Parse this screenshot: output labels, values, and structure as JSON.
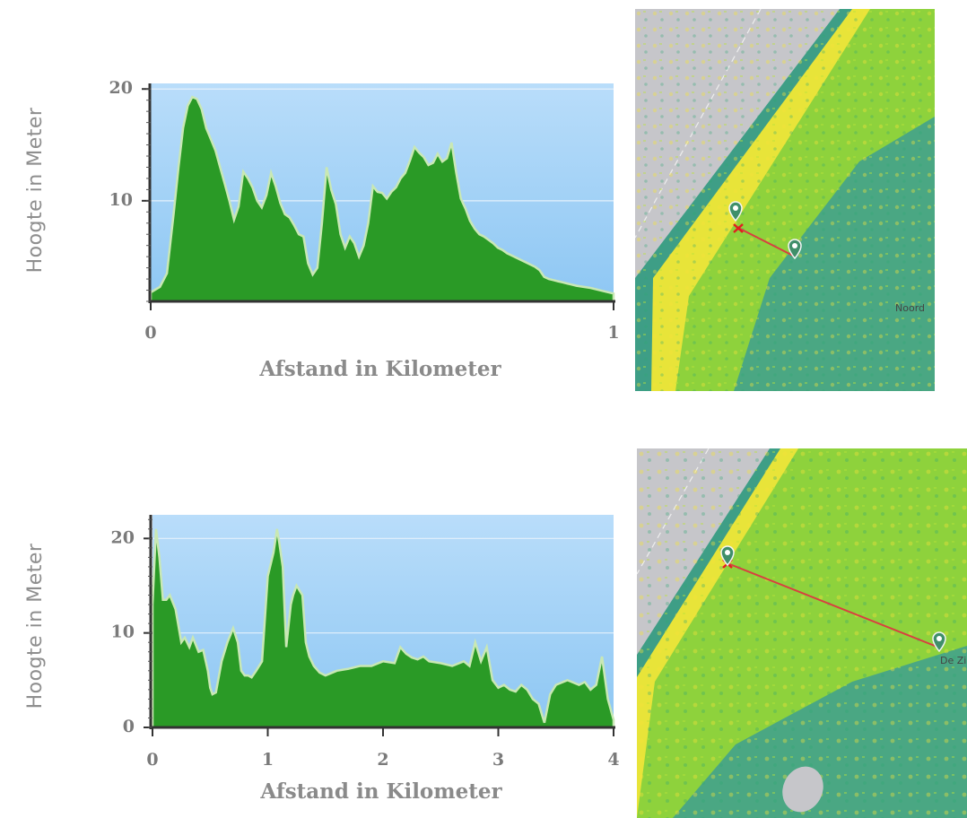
{
  "charts": [
    {
      "type": "area",
      "xlabel": "Afstand in Kilometer",
      "ylabel": "Hoogte in Meter",
      "xlim": [
        0,
        1
      ],
      "ylim": [
        1,
        20.5
      ],
      "x_ticks": [
        "0",
        "1"
      ],
      "y_ticks": [
        "10",
        "20"
      ],
      "grid": true,
      "x": [
        0,
        0.02,
        0.035,
        0.05,
        0.06,
        0.07,
        0.08,
        0.09,
        0.1,
        0.11,
        0.12,
        0.13,
        0.14,
        0.15,
        0.16,
        0.17,
        0.18,
        0.19,
        0.2,
        0.21,
        0.22,
        0.23,
        0.24,
        0.25,
        0.26,
        0.27,
        0.28,
        0.29,
        0.3,
        0.31,
        0.32,
        0.33,
        0.34,
        0.35,
        0.36,
        0.37,
        0.38,
        0.39,
        0.4,
        0.41,
        0.42,
        0.43,
        0.44,
        0.45,
        0.46,
        0.47,
        0.48,
        0.49,
        0.5,
        0.51,
        0.52,
        0.53,
        0.54,
        0.55,
        0.56,
        0.57,
        0.58,
        0.59,
        0.6,
        0.61,
        0.62,
        0.63,
        0.64,
        0.65,
        0.66,
        0.67,
        0.68,
        0.69,
        0.7,
        0.71,
        0.72,
        0.73,
        0.74,
        0.75,
        0.76,
        0.77,
        0.78,
        0.79,
        0.8,
        0.81,
        0.82,
        0.83,
        0.84,
        0.85,
        0.86,
        0.87,
        0.88,
        0.89,
        0.9,
        0.92,
        0.95,
        0.98,
        1.0
      ],
      "values": [
        1.8,
        2.3,
        3.5,
        9,
        13,
        16.5,
        18.5,
        19.3,
        19.1,
        18.2,
        16.5,
        15.5,
        14.5,
        13,
        11.5,
        10,
        8.3,
        9.5,
        12.6,
        12,
        11.2,
        10,
        9.4,
        10.5,
        12.5,
        11.3,
        9.8,
        8.8,
        8.5,
        7.8,
        7,
        6.8,
        4.4,
        3.4,
        4,
        8,
        13,
        11,
        9.7,
        7,
        5.8,
        6.8,
        6.2,
        5,
        6,
        8,
        11.3,
        10.8,
        10.7,
        10.2,
        10.8,
        11.2,
        12,
        12.5,
        13.6,
        14.8,
        14.3,
        13.9,
        13.2,
        13.4,
        14.2,
        13.5,
        13.8,
        15.2,
        12.5,
        10.2,
        9.3,
        8.2,
        7.5,
        7,
        6.8,
        6.5,
        6.2,
        5.8,
        5.6,
        5.3,
        5.1,
        4.9,
        4.7,
        4.5,
        4.3,
        4.1,
        3.8,
        3.2,
        3,
        2.9,
        2.8,
        2.7,
        2.6,
        2.4,
        2.2,
        1.9,
        1.7
      ]
    },
    {
      "type": "area",
      "xlabel": "Afstand in Kilometer",
      "ylabel": "Hoogte in Meter",
      "xlim": [
        0,
        4
      ],
      "ylim": [
        0,
        22.5
      ],
      "x_ticks": [
        "0",
        "1",
        "2",
        "3",
        "4"
      ],
      "y_ticks": [
        "0",
        "10",
        "20"
      ],
      "grid": true,
      "x": [
        0,
        0.03,
        0.06,
        0.09,
        0.12,
        0.15,
        0.2,
        0.25,
        0.28,
        0.32,
        0.35,
        0.4,
        0.44,
        0.48,
        0.5,
        0.52,
        0.55,
        0.6,
        0.65,
        0.7,
        0.74,
        0.77,
        0.8,
        0.83,
        0.86,
        0.9,
        0.95,
        1.0,
        1.05,
        1.08,
        1.1,
        1.13,
        1.16,
        1.2,
        1.22,
        1.25,
        1.3,
        1.33,
        1.36,
        1.4,
        1.45,
        1.5,
        1.6,
        1.7,
        1.8,
        1.9,
        2.0,
        2.1,
        2.15,
        2.2,
        2.25,
        2.3,
        2.35,
        2.4,
        2.5,
        2.6,
        2.7,
        2.75,
        2.8,
        2.85,
        2.9,
        2.95,
        3.0,
        3.05,
        3.1,
        3.15,
        3.2,
        3.25,
        3.3,
        3.35,
        3.4,
        3.45,
        3.5,
        3.6,
        3.7,
        3.75,
        3.8,
        3.85,
        3.9,
        3.95,
        4.0
      ],
      "values": [
        13,
        21,
        18,
        13.5,
        13.5,
        14,
        12.5,
        9,
        9.5,
        8.5,
        9.5,
        8,
        8.2,
        6,
        4.2,
        3.5,
        3.7,
        7,
        9,
        10.5,
        9,
        6,
        5.5,
        5.5,
        5.3,
        6,
        7,
        16,
        18.5,
        21,
        19.5,
        17,
        8.5,
        13,
        14,
        15,
        14,
        9,
        7.5,
        6.5,
        5.8,
        5.5,
        6,
        6.2,
        6.5,
        6.5,
        7,
        6.8,
        8.5,
        7.8,
        7.4,
        7.2,
        7.5,
        7,
        6.8,
        6.5,
        7,
        6.5,
        9,
        7,
        8.5,
        5,
        4.2,
        4.5,
        4,
        3.8,
        4.5,
        4,
        3,
        2.5,
        0.5,
        3.5,
        4.5,
        5,
        4.5,
        4.8,
        4,
        4.5,
        7.5,
        3,
        0.8
      ]
    }
  ],
  "maps": [
    {
      "place_label": "Noord"
    },
    {
      "place_label": "De Zil"
    }
  ]
}
